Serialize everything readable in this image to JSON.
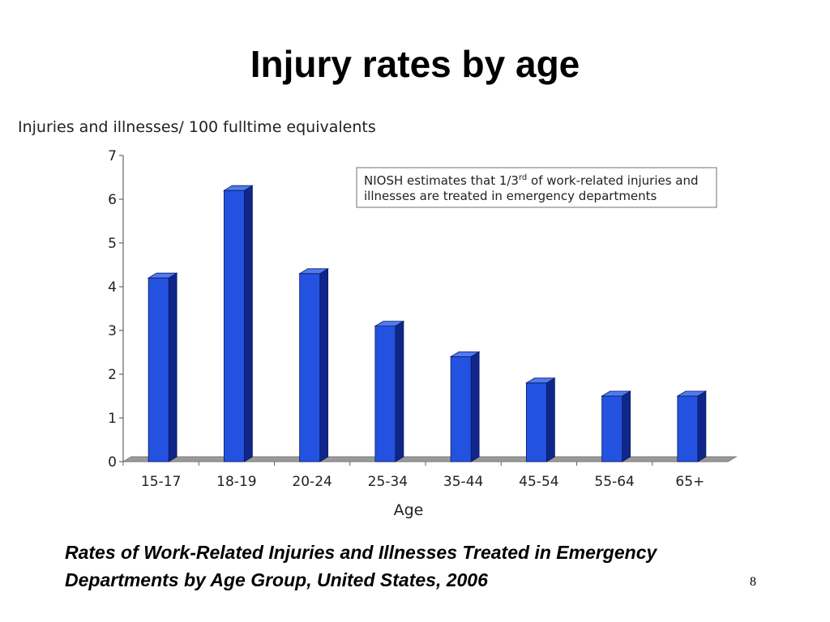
{
  "slide": {
    "title": "Injury rates by age",
    "caption_line1": "Rates of Work-Related Injuries and Illnesses Treated in Emergency",
    "caption_line2": "Departments by Age Group, United States, 2006",
    "page_number": "8"
  },
  "chart_data": {
    "type": "bar",
    "title": "",
    "ylabel": "Injuries and illnesses/ 100 fulltime equivalents",
    "xlabel": "Age",
    "categories": [
      "15-17",
      "18-19",
      "20-24",
      "25-34",
      "35-44",
      "45-54",
      "55-64",
      "65+"
    ],
    "values": [
      4.2,
      6.2,
      4.3,
      3.1,
      2.4,
      1.8,
      1.5,
      1.5
    ],
    "ylim": [
      0,
      7
    ],
    "yticks": [
      0,
      1,
      2,
      3,
      4,
      5,
      6,
      7
    ],
    "grid": false,
    "legend": "none",
    "bar_style": "3d",
    "colors": {
      "bar_front": "#2452e0",
      "bar_side": "#10268a",
      "bar_top": "#4f7bf0",
      "floor": "#9a9a9a"
    },
    "annotation": {
      "line1_pre": "NIOSH estimates that 1/3",
      "line1_sup": "rd",
      "line1_post": " of work-related injuries and",
      "line2": "illnesses are treated in emergency departments"
    }
  }
}
